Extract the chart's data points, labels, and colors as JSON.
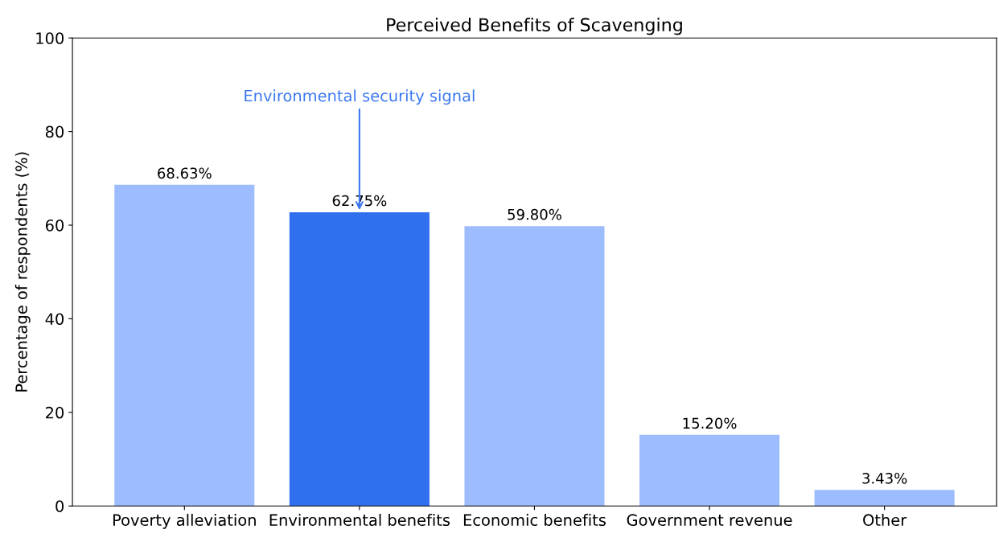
{
  "chart_data": {
    "type": "bar",
    "title": "Perceived Benefits of Scavenging",
    "ylabel": "Percentage of respondents (%)",
    "categories": [
      "Poverty alleviation",
      "Environmental benefits",
      "Economic benefits",
      "Government revenue",
      "Other"
    ],
    "values": [
      68.63,
      62.75,
      59.8,
      15.2,
      3.43
    ],
    "colors": [
      "#9dbcfe",
      "#3070ee",
      "#9dbcfe",
      "#9dbcfe",
      "#9dbcfe"
    ],
    "value_labels": [
      "68.63%",
      "62.75%",
      "59.80%",
      "15.20%",
      "3.43%"
    ],
    "annotations": [
      {
        "text": "Environmental security signal",
        "x": "Environmental benefits",
        "y": 62.75
      }
    ],
    "ylim": [
      0,
      100
    ],
    "yticks": [
      0,
      20,
      40,
      60,
      80,
      100
    ],
    "grid": false,
    "legend": false
  }
}
